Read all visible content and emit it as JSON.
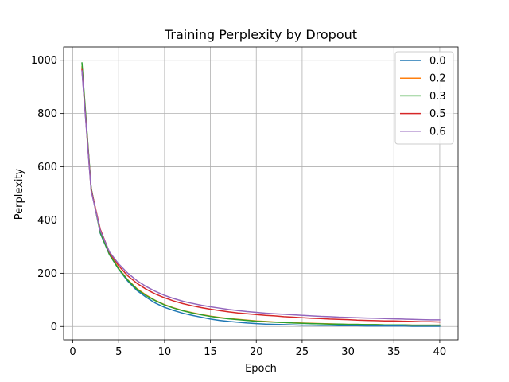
{
  "chart_data": {
    "type": "line",
    "title": "Training Perplexity by Dropout",
    "xlabel": "Epoch",
    "ylabel": "Perplexity",
    "xlim": [
      -1,
      42
    ],
    "ylim": [
      -50,
      1050
    ],
    "xticks": [
      0,
      5,
      10,
      15,
      20,
      25,
      30,
      35,
      40
    ],
    "yticks": [
      0,
      200,
      400,
      600,
      800,
      1000
    ],
    "grid": true,
    "legend_position": "top-right",
    "x": [
      1,
      2,
      3,
      4,
      5,
      6,
      7,
      8,
      9,
      10,
      11,
      12,
      13,
      14,
      15,
      16,
      17,
      18,
      19,
      20,
      21,
      22,
      23,
      24,
      25,
      26,
      27,
      28,
      29,
      30,
      31,
      32,
      33,
      34,
      35,
      36,
      37,
      38,
      39,
      40
    ],
    "series": [
      {
        "name": "0.0",
        "color": "#1f77b4",
        "values": [
          970,
          520,
          350,
          270,
          215,
          170,
          135,
          110,
          88,
          72,
          60,
          50,
          42,
          35,
          28,
          23,
          19,
          16,
          13,
          11,
          9,
          8,
          7,
          6,
          5,
          5,
          4,
          4,
          3,
          3,
          3,
          2,
          2,
          2,
          2,
          2,
          1,
          1,
          1,
          1
        ]
      },
      {
        "name": "0.2",
        "color": "#ff7f0e",
        "values": [
          975,
          515,
          355,
          272,
          218,
          175,
          142,
          118,
          98,
          82,
          70,
          60,
          52,
          45,
          39,
          34,
          30,
          27,
          24,
          21,
          19,
          17,
          15,
          14,
          13,
          12,
          11,
          10,
          9,
          8,
          8,
          7,
          7,
          6,
          6,
          6,
          5,
          5,
          5,
          5
        ]
      },
      {
        "name": "0.3",
        "color": "#2ca02c",
        "values": [
          990,
          520,
          352,
          270,
          216,
          174,
          140,
          116,
          97,
          81,
          69,
          59,
          51,
          44,
          38,
          33,
          29,
          26,
          23,
          20,
          18,
          16,
          15,
          13,
          12,
          11,
          10,
          9,
          9,
          8,
          8,
          7,
          7,
          6,
          6,
          6,
          5,
          5,
          5,
          5
        ]
      },
      {
        "name": "0.5",
        "color": "#d62728",
        "values": [
          965,
          515,
          365,
          278,
          228,
          190,
          162,
          140,
          122,
          108,
          96,
          86,
          78,
          71,
          65,
          60,
          55,
          51,
          48,
          45,
          42,
          40,
          37,
          35,
          33,
          31,
          30,
          28,
          27,
          26,
          24,
          23,
          22,
          21,
          21,
          20,
          19,
          18,
          18,
          17
        ]
      },
      {
        "name": "0.6",
        "color": "#9467bd",
        "values": [
          960,
          510,
          360,
          280,
          235,
          200,
          172,
          150,
          132,
          117,
          105,
          95,
          87,
          80,
          74,
          69,
          64,
          60,
          56,
          53,
          50,
          48,
          46,
          44,
          42,
          40,
          38,
          37,
          35,
          34,
          33,
          32,
          31,
          30,
          29,
          28,
          27,
          26,
          25,
          25
        ]
      }
    ]
  }
}
